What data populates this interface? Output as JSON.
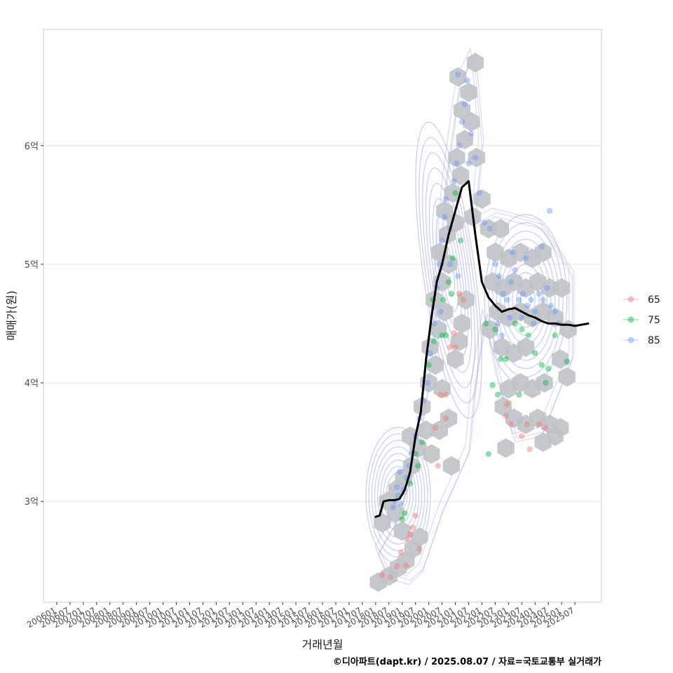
{
  "chart_data": {
    "type": "scatter",
    "title": "",
    "xlabel": "거래년월",
    "ylabel": "매매가(원)",
    "caption": "©디아파트(dapt.kr) / 2025.08.07 / 자료=국토교통부 실거래가",
    "x_tick_labels": [
      "200601",
      "200607",
      "200701",
      "200707",
      "200801",
      "200807",
      "200901",
      "200907",
      "201001",
      "201007",
      "201101",
      "201107",
      "201201",
      "201207",
      "201301",
      "201307",
      "201401",
      "201407",
      "201501",
      "201507",
      "201601",
      "201607",
      "201701",
      "201707",
      "201801",
      "201807",
      "201901",
      "201907",
      "202001",
      "202007",
      "202101",
      "202107",
      "202201",
      "202207",
      "202301",
      "202307",
      "202401",
      "202407",
      "202501",
      "202507"
    ],
    "x_range_index": [
      -1,
      41
    ],
    "y_tick_labels": [
      "3억",
      "4억",
      "5억",
      "6억"
    ],
    "y_tick_values": [
      3.0,
      4.0,
      5.0,
      6.0
    ],
    "ylim": [
      2.15,
      6.98
    ],
    "grid": true,
    "legend": {
      "position": "right",
      "entries": [
        {
          "label": "65",
          "color": "#F8766D"
        },
        {
          "label": "75",
          "color": "#00BA38"
        },
        {
          "label": "85",
          "color": "#619CFF"
        }
      ]
    },
    "colors": {
      "hex_fill": "#bfc3c8",
      "trend_line": "#000000",
      "contour": "#7d95e0",
      "grid": "#e6e6e6",
      "panel_border": "#cccccc"
    },
    "trend_line": {
      "x": [
        24.0,
        24.3,
        24.6,
        25.0,
        25.4,
        25.8,
        26.2,
        26.6,
        27.0,
        27.4,
        27.8,
        28.2,
        28.6,
        29.0,
        29.5,
        30.0,
        30.5,
        31.0,
        31.5,
        32.0,
        32.5,
        33.0,
        33.5,
        34.0,
        34.5,
        35.0,
        35.5,
        36.0,
        36.5,
        37.0,
        37.5,
        38.0,
        38.5,
        39.0,
        39.5,
        40.0
      ],
      "y": [
        2.87,
        2.88,
        3.0,
        3.01,
        3.01,
        3.02,
        3.1,
        3.25,
        3.55,
        3.75,
        4.2,
        4.55,
        4.85,
        5.0,
        5.25,
        5.45,
        5.65,
        5.7,
        5.25,
        4.85,
        4.72,
        4.65,
        4.6,
        4.62,
        4.63,
        4.6,
        4.57,
        4.55,
        4.52,
        4.5,
        4.5,
        4.49,
        4.49,
        4.48,
        4.49,
        4.5
      ]
    },
    "hexbins": [
      {
        "x": 24.2,
        "y": 2.32
      },
      {
        "x": 25.0,
        "y": 2.37
      },
      {
        "x": 25.7,
        "y": 2.44
      },
      {
        "x": 26.3,
        "y": 2.5
      },
      {
        "x": 26.8,
        "y": 2.6
      },
      {
        "x": 27.3,
        "y": 2.7
      },
      {
        "x": 26.0,
        "y": 2.75
      },
      {
        "x": 25.5,
        "y": 2.9
      },
      {
        "x": 24.5,
        "y": 2.82
      },
      {
        "x": 24.9,
        "y": 3.0
      },
      {
        "x": 25.6,
        "y": 3.1
      },
      {
        "x": 26.1,
        "y": 3.2
      },
      {
        "x": 26.7,
        "y": 3.3
      },
      {
        "x": 27.2,
        "y": 3.45
      },
      {
        "x": 26.6,
        "y": 3.55
      },
      {
        "x": 27.8,
        "y": 3.6
      },
      {
        "x": 27.5,
        "y": 3.8
      },
      {
        "x": 28.0,
        "y": 4.0
      },
      {
        "x": 28.5,
        "y": 4.15
      },
      {
        "x": 28.1,
        "y": 4.3
      },
      {
        "x": 28.7,
        "y": 4.45
      },
      {
        "x": 29.2,
        "y": 4.6
      },
      {
        "x": 28.4,
        "y": 4.7
      },
      {
        "x": 29.0,
        "y": 4.85
      },
      {
        "x": 29.5,
        "y": 5.0
      },
      {
        "x": 28.8,
        "y": 5.1
      },
      {
        "x": 29.4,
        "y": 5.25
      },
      {
        "x": 30.0,
        "y": 5.35
      },
      {
        "x": 29.2,
        "y": 5.45
      },
      {
        "x": 29.8,
        "y": 5.6
      },
      {
        "x": 30.4,
        "y": 5.75
      },
      {
        "x": 30.1,
        "y": 5.9
      },
      {
        "x": 30.7,
        "y": 6.05
      },
      {
        "x": 31.2,
        "y": 6.2
      },
      {
        "x": 30.5,
        "y": 6.3
      },
      {
        "x": 31.0,
        "y": 6.45
      },
      {
        "x": 30.2,
        "y": 6.58
      },
      {
        "x": 31.5,
        "y": 6.7
      },
      {
        "x": 31.6,
        "y": 5.9
      },
      {
        "x": 32.0,
        "y": 5.55
      },
      {
        "x": 31.3,
        "y": 5.4
      },
      {
        "x": 32.5,
        "y": 5.3
      },
      {
        "x": 33.4,
        "y": 5.3
      },
      {
        "x": 33.0,
        "y": 5.1
      },
      {
        "x": 34.0,
        "y": 5.05
      },
      {
        "x": 34.9,
        "y": 5.1
      },
      {
        "x": 35.8,
        "y": 5.05
      },
      {
        "x": 36.6,
        "y": 5.1
      },
      {
        "x": 32.8,
        "y": 4.85
      },
      {
        "x": 33.6,
        "y": 4.8
      },
      {
        "x": 34.4,
        "y": 4.85
      },
      {
        "x": 35.3,
        "y": 4.8
      },
      {
        "x": 36.2,
        "y": 4.85
      },
      {
        "x": 37.1,
        "y": 4.8
      },
      {
        "x": 38.0,
        "y": 4.8
      },
      {
        "x": 33.2,
        "y": 4.6
      },
      {
        "x": 34.0,
        "y": 4.55
      },
      {
        "x": 34.9,
        "y": 4.6
      },
      {
        "x": 35.8,
        "y": 4.55
      },
      {
        "x": 36.6,
        "y": 4.6
      },
      {
        "x": 37.5,
        "y": 4.55
      },
      {
        "x": 38.5,
        "y": 4.45
      },
      {
        "x": 32.6,
        "y": 4.45
      },
      {
        "x": 33.5,
        "y": 4.3
      },
      {
        "x": 34.4,
        "y": 4.25
      },
      {
        "x": 35.3,
        "y": 4.3
      },
      {
        "x": 37.9,
        "y": 4.2
      },
      {
        "x": 38.4,
        "y": 4.05
      },
      {
        "x": 34.0,
        "y": 3.95
      },
      {
        "x": 34.9,
        "y": 4.0
      },
      {
        "x": 35.8,
        "y": 3.95
      },
      {
        "x": 36.7,
        "y": 4.0
      },
      {
        "x": 33.6,
        "y": 3.8
      },
      {
        "x": 34.4,
        "y": 3.7
      },
      {
        "x": 35.3,
        "y": 3.65
      },
      {
        "x": 36.2,
        "y": 3.7
      },
      {
        "x": 37.1,
        "y": 3.65
      },
      {
        "x": 37.5,
        "y": 3.55
      },
      {
        "x": 36.6,
        "y": 3.5
      },
      {
        "x": 33.8,
        "y": 3.45
      },
      {
        "x": 37.9,
        "y": 3.62
      },
      {
        "x": 29.0,
        "y": 3.95
      },
      {
        "x": 29.5,
        "y": 3.7
      },
      {
        "x": 28.8,
        "y": 3.6
      },
      {
        "x": 29.7,
        "y": 3.3
      },
      {
        "x": 28.2,
        "y": 3.4
      },
      {
        "x": 30.3,
        "y": 4.35
      },
      {
        "x": 30.8,
        "y": 4.7
      },
      {
        "x": 30.5,
        "y": 4.5
      },
      {
        "x": 30.0,
        "y": 4.2
      }
    ],
    "series": [
      {
        "name": "65",
        "points": [
          {
            "x": 24.5,
            "y": 2.38
          },
          {
            "x": 25.1,
            "y": 2.36
          },
          {
            "x": 25.6,
            "y": 2.45
          },
          {
            "x": 25.9,
            "y": 2.57
          },
          {
            "x": 26.4,
            "y": 2.68
          },
          {
            "x": 26.8,
            "y": 2.78
          },
          {
            "x": 27.0,
            "y": 2.88
          },
          {
            "x": 26.3,
            "y": 2.46
          },
          {
            "x": 27.3,
            "y": 2.6
          },
          {
            "x": 26.6,
            "y": 2.72
          },
          {
            "x": 28.7,
            "y": 3.3
          },
          {
            "x": 28.5,
            "y": 3.62
          },
          {
            "x": 29.3,
            "y": 3.7
          },
          {
            "x": 28.9,
            "y": 3.9
          },
          {
            "x": 29.6,
            "y": 4.3
          },
          {
            "x": 30.0,
            "y": 4.3
          },
          {
            "x": 29.9,
            "y": 4.42
          },
          {
            "x": 30.3,
            "y": 4.75
          },
          {
            "x": 30.6,
            "y": 4.7
          },
          {
            "x": 29.3,
            "y": 3.9
          },
          {
            "x": 33.8,
            "y": 3.72
          },
          {
            "x": 34.2,
            "y": 3.65
          },
          {
            "x": 35.0,
            "y": 3.55
          },
          {
            "x": 35.4,
            "y": 3.65
          },
          {
            "x": 35.6,
            "y": 3.44
          },
          {
            "x": 36.3,
            "y": 3.65
          },
          {
            "x": 36.8,
            "y": 3.62
          },
          {
            "x": 33.9,
            "y": 3.82
          }
        ]
      },
      {
        "name": "75",
        "points": [
          {
            "x": 26.0,
            "y": 2.85
          },
          {
            "x": 26.2,
            "y": 2.9
          },
          {
            "x": 27.0,
            "y": 3.4
          },
          {
            "x": 27.2,
            "y": 3.3
          },
          {
            "x": 26.6,
            "y": 3.15
          },
          {
            "x": 27.5,
            "y": 3.5
          },
          {
            "x": 28.0,
            "y": 4.15
          },
          {
            "x": 28.4,
            "y": 4.35
          },
          {
            "x": 29.0,
            "y": 4.4
          },
          {
            "x": 29.1,
            "y": 4.7
          },
          {
            "x": 29.5,
            "y": 4.85
          },
          {
            "x": 29.8,
            "y": 5.05
          },
          {
            "x": 30.4,
            "y": 5.2
          },
          {
            "x": 30.0,
            "y": 5.6
          },
          {
            "x": 29.7,
            "y": 4.75
          },
          {
            "x": 29.3,
            "y": 4.4
          },
          {
            "x": 28.3,
            "y": 4.7
          },
          {
            "x": 32.3,
            "y": 4.5
          },
          {
            "x": 33.0,
            "y": 4.45
          },
          {
            "x": 33.4,
            "y": 4.2
          },
          {
            "x": 33.8,
            "y": 4.2
          },
          {
            "x": 34.5,
            "y": 4.5
          },
          {
            "x": 35.0,
            "y": 4.45
          },
          {
            "x": 35.5,
            "y": 4.4
          },
          {
            "x": 36.0,
            "y": 4.25
          },
          {
            "x": 36.5,
            "y": 4.15
          },
          {
            "x": 37.0,
            "y": 4.12
          },
          {
            "x": 32.5,
            "y": 3.4
          },
          {
            "x": 32.8,
            "y": 3.98
          },
          {
            "x": 33.2,
            "y": 3.9
          },
          {
            "x": 34.8,
            "y": 3.9
          },
          {
            "x": 36.8,
            "y": 4.0
          },
          {
            "x": 38.4,
            "y": 4.18
          },
          {
            "x": 37.5,
            "y": 4.4
          }
        ]
      },
      {
        "name": "85",
        "points": [
          {
            "x": 25.3,
            "y": 2.95
          },
          {
            "x": 25.5,
            "y": 3.0
          },
          {
            "x": 25.7,
            "y": 3.05
          },
          {
            "x": 25.9,
            "y": 2.98
          },
          {
            "x": 26.1,
            "y": 3.1
          },
          {
            "x": 25.6,
            "y": 3.12
          },
          {
            "x": 26.3,
            "y": 3.2
          },
          {
            "x": 26.5,
            "y": 3.3
          },
          {
            "x": 25.8,
            "y": 3.25
          },
          {
            "x": 26.7,
            "y": 3.4
          },
          {
            "x": 27.0,
            "y": 3.55
          },
          {
            "x": 27.3,
            "y": 3.7
          },
          {
            "x": 27.6,
            "y": 3.85
          },
          {
            "x": 27.9,
            "y": 4.0
          },
          {
            "x": 28.1,
            "y": 4.25
          },
          {
            "x": 28.4,
            "y": 4.5
          },
          {
            "x": 28.6,
            "y": 4.8
          },
          {
            "x": 28.8,
            "y": 5.0
          },
          {
            "x": 29.0,
            "y": 5.2
          },
          {
            "x": 29.2,
            "y": 5.4
          },
          {
            "x": 29.3,
            "y": 5.55
          },
          {
            "x": 29.6,
            "y": 5.3
          },
          {
            "x": 29.9,
            "y": 5.7
          },
          {
            "x": 30.1,
            "y": 5.85
          },
          {
            "x": 30.3,
            "y": 6.0
          },
          {
            "x": 30.5,
            "y": 6.2
          },
          {
            "x": 30.7,
            "y": 6.35
          },
          {
            "x": 30.9,
            "y": 6.55
          },
          {
            "x": 30.2,
            "y": 6.6
          },
          {
            "x": 31.2,
            "y": 6.1
          },
          {
            "x": 31.5,
            "y": 5.9
          },
          {
            "x": 31.0,
            "y": 5.85
          },
          {
            "x": 29.6,
            "y": 5.0
          },
          {
            "x": 28.9,
            "y": 4.6
          },
          {
            "x": 30.2,
            "y": 4.9
          },
          {
            "x": 32.2,
            "y": 5.35
          },
          {
            "x": 33.0,
            "y": 5.0
          },
          {
            "x": 33.3,
            "y": 4.9
          },
          {
            "x": 33.6,
            "y": 4.75
          },
          {
            "x": 33.9,
            "y": 4.7
          },
          {
            "x": 34.2,
            "y": 4.85
          },
          {
            "x": 34.5,
            "y": 4.95
          },
          {
            "x": 34.8,
            "y": 4.7
          },
          {
            "x": 35.1,
            "y": 4.75
          },
          {
            "x": 35.4,
            "y": 4.65
          },
          {
            "x": 35.7,
            "y": 4.7
          },
          {
            "x": 36.0,
            "y": 4.6
          },
          {
            "x": 36.3,
            "y": 4.75
          },
          {
            "x": 36.6,
            "y": 4.7
          },
          {
            "x": 36.9,
            "y": 4.8
          },
          {
            "x": 37.2,
            "y": 4.65
          },
          {
            "x": 37.5,
            "y": 4.6
          },
          {
            "x": 37.8,
            "y": 4.5
          },
          {
            "x": 33.2,
            "y": 4.5
          },
          {
            "x": 33.5,
            "y": 4.4
          },
          {
            "x": 34.1,
            "y": 4.55
          },
          {
            "x": 35.0,
            "y": 4.55
          },
          {
            "x": 35.9,
            "y": 4.5
          },
          {
            "x": 36.5,
            "y": 5.15
          },
          {
            "x": 35.3,
            "y": 5.05
          },
          {
            "x": 34.3,
            "y": 5.1
          },
          {
            "x": 37.1,
            "y": 5.45
          },
          {
            "x": 31.8,
            "y": 5.6
          },
          {
            "x": 32.6,
            "y": 5.3
          }
        ]
      }
    ]
  }
}
